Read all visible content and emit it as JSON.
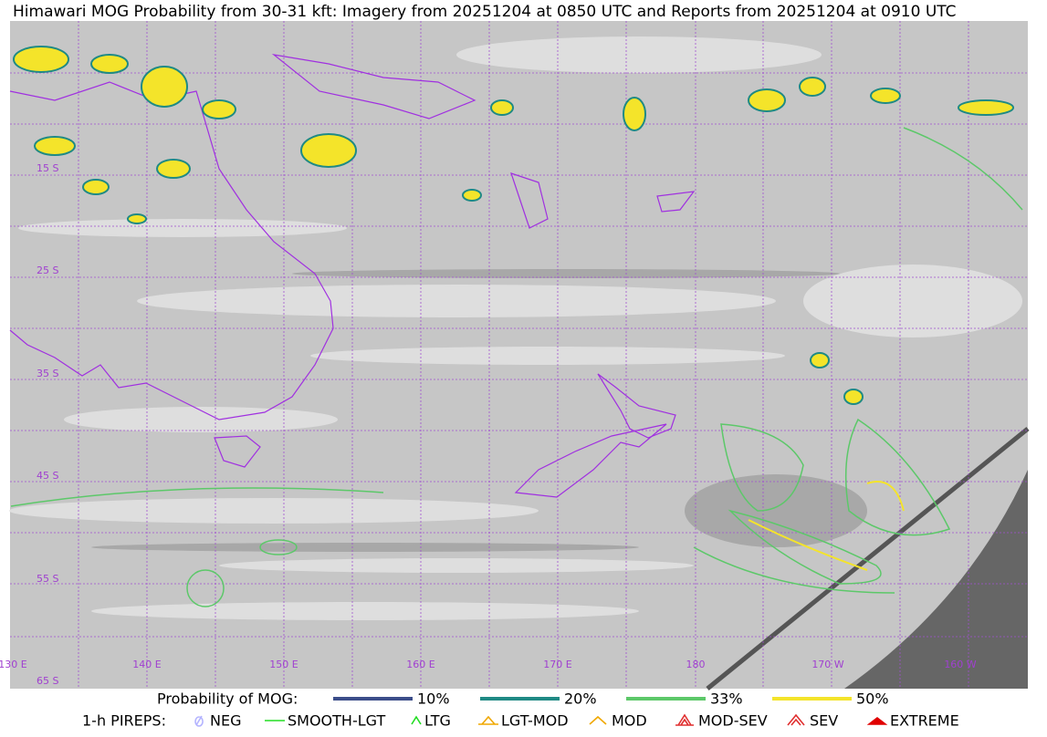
{
  "header": {
    "title": "Himawari MOG Probability from 30-31 kft: Imagery from 20251204 at 0850 UTC and Reports from 20251204 at 0910 UTC"
  },
  "map": {
    "lat_labels": [
      "15 S",
      "25 S",
      "35 S",
      "45 S",
      "55 S",
      "65 S"
    ],
    "lon_labels": [
      "130 E",
      "140 E",
      "150 E",
      "160 E",
      "170 E",
      "180",
      "170 W",
      "160 W"
    ]
  },
  "legend": {
    "probability": {
      "label": "Probability of MOG:",
      "items": [
        {
          "label": "10%",
          "color": "#3b4d8a"
        },
        {
          "label": "20%",
          "color": "#1f8a84"
        },
        {
          "label": "33%",
          "color": "#5cc869"
        },
        {
          "label": "50%",
          "color": "#f4e42a"
        }
      ]
    },
    "pireps": {
      "label": "1-h PIREPS:",
      "items": [
        {
          "label": "NEG",
          "color": "#b4b4ff"
        },
        {
          "label": "SMOOTH-LGT",
          "color": "#22dd22"
        },
        {
          "label": "LTG",
          "color": "#22dd22"
        },
        {
          "label": "LGT-MOD",
          "color": "#f0a800"
        },
        {
          "label": "MOD",
          "color": "#f0a800"
        },
        {
          "label": "MOD-SEV",
          "color": "#e03030"
        },
        {
          "label": "SEV",
          "color": "#e03030"
        },
        {
          "label": "EXTREME",
          "color": "#e00000"
        }
      ]
    }
  }
}
